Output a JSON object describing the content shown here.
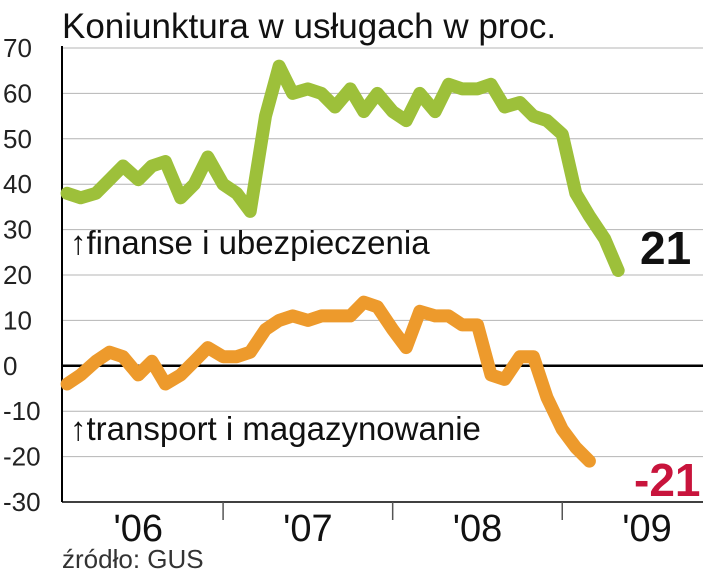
{
  "chart_data": {
    "type": "line",
    "title": "Koniunktura w usługach w proc.",
    "source": "źródło: GUS",
    "ylim": [
      -30,
      70
    ],
    "yticks": [
      70,
      60,
      50,
      40,
      30,
      20,
      10,
      0,
      -10,
      -20,
      -30
    ],
    "ytick_labels": [
      "70",
      "60",
      "50",
      "40",
      "30",
      "20",
      "10",
      "0",
      "-10",
      "-20",
      "-30"
    ],
    "xlim": [
      2005.55,
      2009.33
    ],
    "x_categories": [
      {
        "label": "'06",
        "x": 2006.0
      },
      {
        "label": "'07",
        "x": 2007.0
      },
      {
        "label": "'08",
        "x": 2008.0
      },
      {
        "label": "'09",
        "x": 2009.0
      }
    ],
    "x_separators": [
      2006.5,
      2007.5,
      2008.5
    ],
    "grid": true,
    "zero_line": true,
    "series": [
      {
        "name": "finanse i ubezpieczenia",
        "color": "#9dc03a",
        "label": "↑finanse i ubezpieczenia",
        "end_value": "21",
        "end_color": "#111111",
        "points": [
          [
            2005.58,
            38
          ],
          [
            2005.66,
            37
          ],
          [
            2005.75,
            38
          ],
          [
            2005.83,
            41
          ],
          [
            2005.91,
            44
          ],
          [
            2006.0,
            41
          ],
          [
            2006.08,
            44
          ],
          [
            2006.16,
            45
          ],
          [
            2006.25,
            37
          ],
          [
            2006.33,
            40
          ],
          [
            2006.41,
            46
          ],
          [
            2006.5,
            40
          ],
          [
            2006.58,
            38
          ],
          [
            2006.66,
            34
          ],
          [
            2006.75,
            55
          ],
          [
            2006.83,
            66
          ],
          [
            2006.91,
            60
          ],
          [
            2007.0,
            61
          ],
          [
            2007.08,
            60
          ],
          [
            2007.16,
            57
          ],
          [
            2007.25,
            61
          ],
          [
            2007.33,
            56
          ],
          [
            2007.41,
            60
          ],
          [
            2007.5,
            56
          ],
          [
            2007.58,
            54
          ],
          [
            2007.66,
            60
          ],
          [
            2007.75,
            56
          ],
          [
            2007.83,
            62
          ],
          [
            2007.91,
            61
          ],
          [
            2008.0,
            61
          ],
          [
            2008.08,
            62
          ],
          [
            2008.16,
            57
          ],
          [
            2008.25,
            58
          ],
          [
            2008.33,
            55
          ],
          [
            2008.41,
            54
          ],
          [
            2008.5,
            51
          ],
          [
            2008.58,
            38
          ],
          [
            2008.66,
            33
          ],
          [
            2008.75,
            28
          ],
          [
            2008.83,
            21
          ]
        ]
      },
      {
        "name": "transport i magazynowanie",
        "color": "#ed9a2c",
        "label": "↑transport i magazynowanie",
        "end_value": "-21",
        "end_color": "#c8143c",
        "points": [
          [
            2005.58,
            -4
          ],
          [
            2005.66,
            -2
          ],
          [
            2005.75,
            1
          ],
          [
            2005.83,
            3
          ],
          [
            2005.91,
            2
          ],
          [
            2006.0,
            -2
          ],
          [
            2006.08,
            1
          ],
          [
            2006.16,
            -4
          ],
          [
            2006.25,
            -2
          ],
          [
            2006.33,
            1
          ],
          [
            2006.41,
            4
          ],
          [
            2006.5,
            2
          ],
          [
            2006.58,
            2
          ],
          [
            2006.66,
            3
          ],
          [
            2006.75,
            8
          ],
          [
            2006.83,
            10
          ],
          [
            2006.91,
            11
          ],
          [
            2007.0,
            10
          ],
          [
            2007.08,
            11
          ],
          [
            2007.16,
            11
          ],
          [
            2007.25,
            11
          ],
          [
            2007.33,
            14
          ],
          [
            2007.41,
            13
          ],
          [
            2007.5,
            8
          ],
          [
            2007.58,
            4
          ],
          [
            2007.66,
            12
          ],
          [
            2007.75,
            11
          ],
          [
            2007.83,
            11
          ],
          [
            2007.91,
            9
          ],
          [
            2008.0,
            9
          ],
          [
            2008.08,
            -2
          ],
          [
            2008.16,
            -3
          ],
          [
            2008.25,
            2
          ],
          [
            2008.33,
            2
          ],
          [
            2008.41,
            -7
          ],
          [
            2008.5,
            -14
          ],
          [
            2008.58,
            -18
          ],
          [
            2008.66,
            -21
          ]
        ]
      }
    ]
  }
}
